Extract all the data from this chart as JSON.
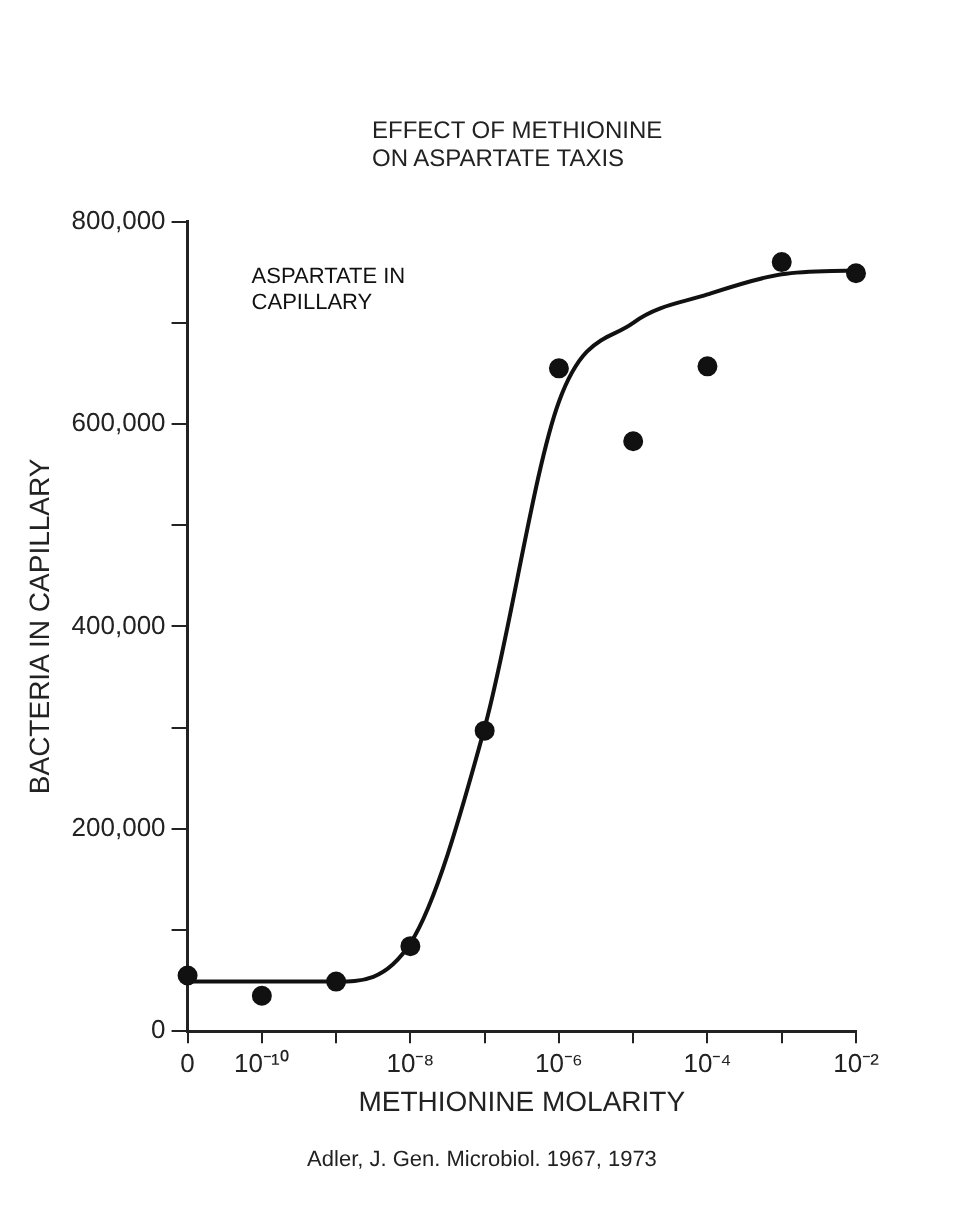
{
  "chart_data": {
    "type": "scatter",
    "title": "EFFECT OF METHIONINE ON ASPARTATE TAXIS",
    "xlabel": "METHIONINE MOLARITY",
    "ylabel": "BACTERIA IN CAPILLARY",
    "categories": [
      "0",
      "10⁻¹⁰",
      null,
      "10⁻⁸",
      null,
      "10⁻⁶",
      null,
      "10⁻⁴",
      null,
      "10⁻²"
    ],
    "series": [
      {
        "color": "#111111",
        "marker": "circle",
        "values": [
          55000,
          35000,
          49000,
          84000,
          297000,
          655000,
          583000,
          657000,
          760000,
          749000
        ]
      },
      {
        "type": "line",
        "color": "#111111",
        "marker": "none",
        "line_style": "solid",
        "values": [
          49000,
          49000,
          49000,
          87000,
          300000,
          622000,
          700000,
          728000,
          748000,
          752000
        ]
      }
    ],
    "ylim": [
      0,
      800000
    ],
    "yticks": [
      0,
      {
        "value": 100000,
        "label": null
      },
      {
        "value": 200000,
        "label": "200,000"
      },
      {
        "value": 300000,
        "label": null
      },
      {
        "value": 400000,
        "label": "400,000"
      },
      {
        "value": 500000,
        "label": null
      },
      {
        "value": 600000,
        "label": "600,000"
      },
      {
        "value": 700000,
        "label": null
      },
      {
        "value": 800000,
        "label": "800,000"
      }
    ],
    "grid": false,
    "legend": false,
    "annotations": [
      "ASPARTATE IN CAPILLARY",
      "Adler, J. Gen. Microbiol. 1967, 1973"
    ]
  }
}
